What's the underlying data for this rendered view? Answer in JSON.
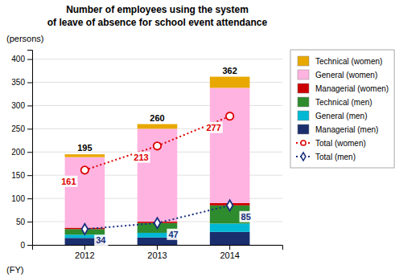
{
  "chart_data": {
    "type": "bar",
    "stacked": true,
    "title": "Number of employees using the system",
    "subtitle": "of leave of absence for school event attendance",
    "xlabel": "(FY)",
    "ylabel": "(persons)",
    "categories": [
      "2012",
      "2013",
      "2014"
    ],
    "series": [
      {
        "name": "Managerial (men)",
        "type": "bar",
        "color": "#1A2E6E",
        "values": [
          15,
          16,
          28
        ]
      },
      {
        "name": "General (men)",
        "type": "bar",
        "color": "#00B8D4",
        "values": [
          7,
          10,
          18
        ]
      },
      {
        "name": "Technical (men)",
        "type": "bar",
        "color": "#2E8B2E",
        "values": [
          12,
          21,
          39
        ]
      },
      {
        "name": "Managerial (women)",
        "type": "bar",
        "color": "#CC0000",
        "values": [
          3,
          3,
          5
        ]
      },
      {
        "name": "General (women)",
        "type": "bar",
        "color": "#FFB3E0",
        "values": [
          152,
          200,
          248
        ]
      },
      {
        "name": "Technical (women)",
        "type": "bar",
        "color": "#E8A800",
        "values": [
          6,
          10,
          24
        ]
      },
      {
        "name": "Total (women)",
        "type": "line",
        "color": "#DD0000",
        "marker": "circle",
        "line_style": "dotted",
        "data_labels": true,
        "values": [
          161,
          213,
          277
        ]
      },
      {
        "name": "Total (men)",
        "type": "line",
        "color": "#1A2E80",
        "marker": "diamond",
        "line_style": "dotted",
        "data_labels": true,
        "values": [
          34,
          47,
          85
        ]
      }
    ],
    "totals": [
      195,
      260,
      362
    ],
    "ylim": [
      0,
      420
    ],
    "yticks": [
      0,
      50,
      100,
      150,
      200,
      250,
      300,
      350,
      400
    ],
    "grid": true,
    "legend": "right"
  }
}
